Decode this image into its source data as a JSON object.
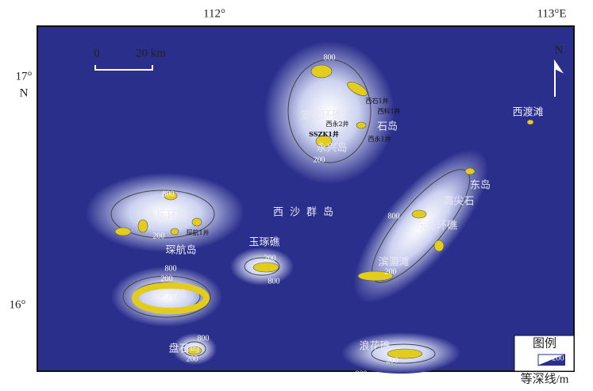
{
  "map": {
    "frame": {
      "top_labels": [
        "112°",
        "113°E"
      ],
      "left_labels": [
        "17°",
        "N",
        "16°"
      ]
    },
    "scale_bar": {
      "zero": "0",
      "length": "20 km"
    },
    "north": "N",
    "title": "西沙群岛",
    "features": [
      "宣德环礁",
      "石岛",
      "永兴岛",
      "西渡滩",
      "东岛",
      "高尖石",
      "永乐环礁",
      "琛航岛",
      "玉琢礁",
      "东岛环礁",
      "滨湄滩",
      "华光礁",
      "盘石屿",
      "浪花礁"
    ],
    "wells": [
      "西石1井",
      "西科1井",
      "西永2井",
      "SSZK1井",
      "西永1井",
      "琛航1井"
    ],
    "depth_labels": [
      "800",
      "200",
      "800",
      "200",
      "800",
      "200",
      "200",
      "800",
      "800",
      "200",
      "800",
      "200",
      "800",
      "200"
    ],
    "legend": {
      "title": "图例",
      "sample": "200",
      "caption": "等深线/m"
    }
  }
}
